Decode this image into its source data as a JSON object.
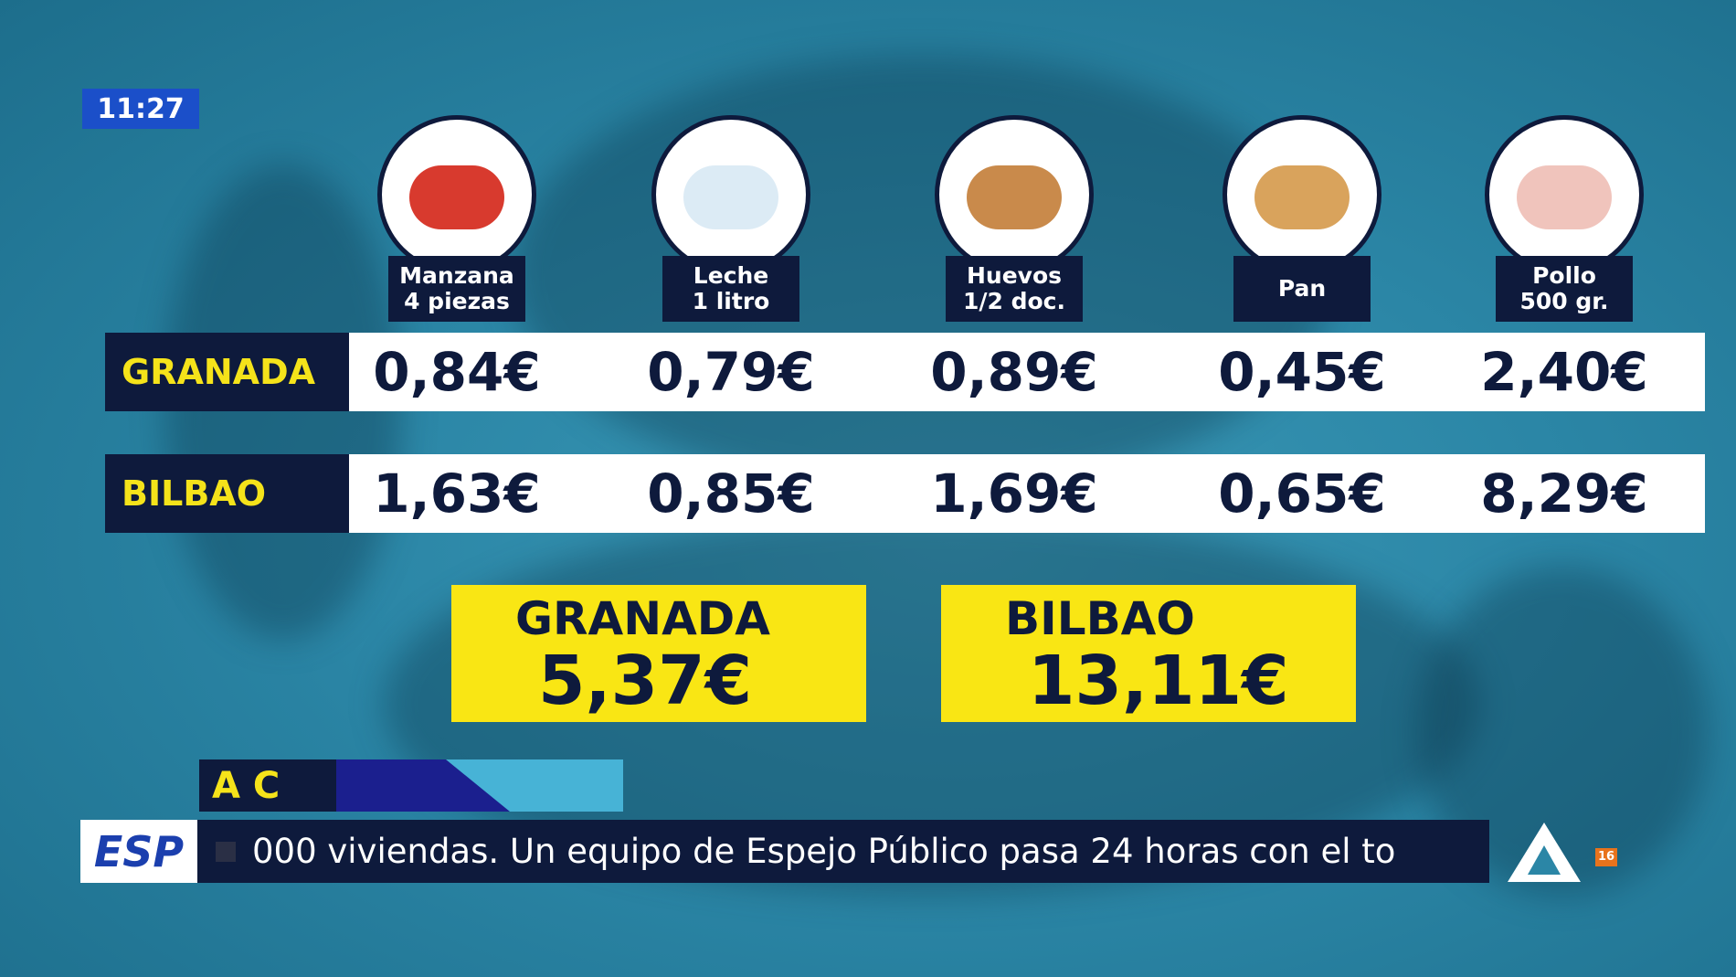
{
  "clock": "11:27",
  "products": [
    {
      "name": "Manzana",
      "detail": "4 piezas"
    },
    {
      "name": "Leche",
      "detail": "1 litro"
    },
    {
      "name": "Huevos",
      "detail": "1/2 doc."
    },
    {
      "name": "Pan"
    },
    {
      "name": "Pollo",
      "detail": "500 gr."
    }
  ],
  "table": {
    "rows": [
      {
        "city": "GRANADA",
        "prices": [
          "0,84€",
          "0,79€",
          "0,89€",
          "0,45€",
          "2,40€"
        ]
      },
      {
        "city": "BILBAO",
        "prices": [
          "1,63€",
          "0,85€",
          "1,69€",
          "0,65€",
          "8,29€"
        ]
      }
    ]
  },
  "totals": [
    {
      "city": "GRANADA",
      "total": "5,37€"
    },
    {
      "city": "BILBAO",
      "total": "13,11€"
    }
  ],
  "lower_third": "A C",
  "ticker": {
    "logo": "ESP",
    "text": "000 viviendas. Un equipo de Espejo Público pasa 24 horas con el to"
  },
  "age_rating": "16"
}
